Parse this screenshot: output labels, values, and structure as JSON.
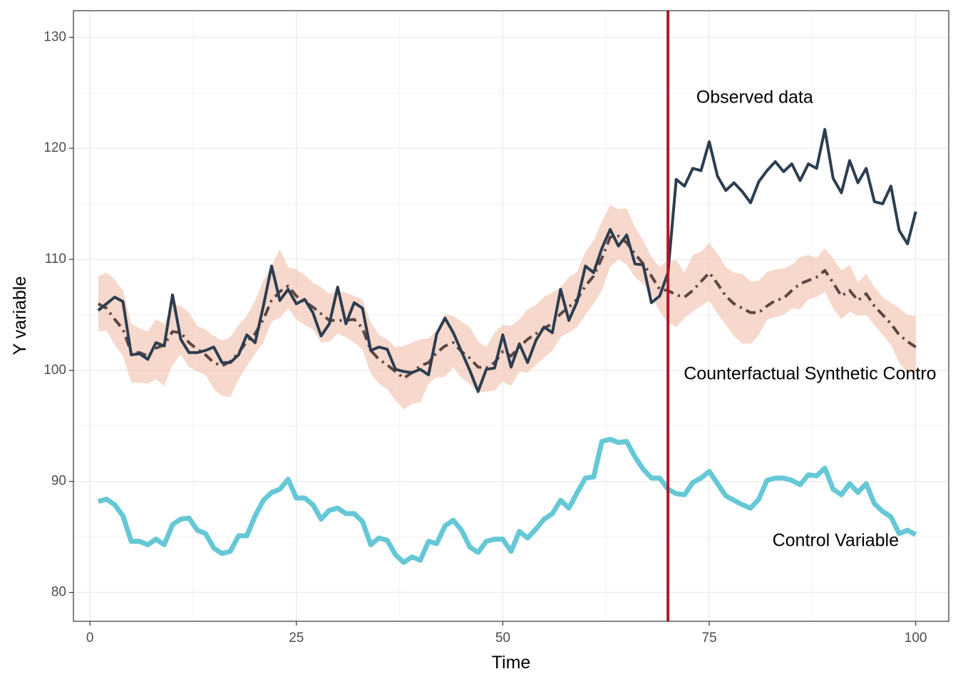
{
  "chart_data": {
    "type": "line",
    "xlabel": "Time",
    "ylabel": "Y variable",
    "xlim": [
      -2,
      104
    ],
    "ylim": [
      77.4,
      132.4
    ],
    "x_ticks": [
      0,
      25,
      50,
      75,
      100
    ],
    "y_ticks": [
      80,
      90,
      100,
      110,
      120,
      130
    ],
    "grid": true,
    "intervention": {
      "x": 70,
      "color": "#b2182b"
    },
    "annotations": [
      {
        "text": "Observed data",
        "x": 80.5,
        "y": 124.5
      },
      {
        "text": "Counterfactual Synthetic Contro",
        "x": 87.2,
        "y": 99.6
      },
      {
        "text": "Control Variable",
        "x": 90.3,
        "y": 84.6
      }
    ],
    "colors": {
      "observed": "#2c3e50",
      "counterfactual": "#5b4643",
      "band": "#f4c7b6",
      "control": "#66c8d6"
    },
    "series": [
      {
        "key": "observed",
        "x": [
          1,
          2,
          3,
          4,
          5,
          6,
          7,
          8,
          9,
          10,
          11,
          12,
          13,
          14,
          15,
          16,
          17,
          18,
          19,
          20,
          21,
          22,
          23,
          24,
          25,
          26,
          27,
          28,
          29,
          30,
          31,
          32,
          33,
          34,
          35,
          36,
          37,
          38,
          39,
          40,
          41,
          42,
          43,
          44,
          45,
          46,
          47,
          48,
          49,
          50,
          51,
          52,
          53,
          54,
          55,
          56,
          57,
          58,
          59,
          60,
          61,
          62,
          63,
          64,
          65,
          66,
          67,
          68,
          69,
          70,
          71,
          72,
          73,
          74,
          75,
          76,
          77,
          78,
          79,
          80,
          81,
          82,
          83,
          84,
          85,
          86,
          87,
          88,
          89,
          90,
          91,
          92,
          93,
          94,
          95,
          96,
          97,
          98,
          99,
          100
        ],
        "y": [
          105.4,
          106,
          106.6,
          106.2,
          101.4,
          101.5,
          101,
          102.5,
          102.2,
          106.8,
          102.8,
          101.6,
          101.6,
          101.8,
          102.1,
          100.7,
          100.7,
          101.4,
          103.2,
          102.5,
          105.8,
          109.4,
          106.3,
          107.3,
          106,
          106.4,
          105.2,
          103.1,
          104.2,
          107.5,
          104.2,
          106.1,
          105.6,
          101.8,
          102.1,
          101.9,
          100.1,
          99.9,
          99.8,
          100.1,
          99.6,
          103.3,
          104.7,
          103.4,
          101.7,
          100,
          98.1,
          100.1,
          100.2,
          103.2,
          100.3,
          102.4,
          100.7,
          102.7,
          103.9,
          103.4,
          107.3,
          104.5,
          106.2,
          109.4,
          108.8,
          111,
          112.7,
          111.2,
          112.2,
          109.6,
          109.5,
          106.1,
          106.7,
          108.8,
          117.2,
          116.6,
          118.2,
          118,
          120.6,
          117.5,
          116.2,
          116.9,
          116.1,
          115.1,
          117,
          118,
          118.8,
          117.9,
          118.6,
          117.1,
          118.6,
          118.2,
          121.7,
          117.3,
          116,
          118.9,
          116.9,
          118.2,
          115.2,
          115,
          116.6,
          112.6,
          111.4,
          114.3
        ]
      },
      {
        "key": "counterfactual",
        "x": [
          1,
          2,
          3,
          4,
          5,
          6,
          7,
          8,
          9,
          10,
          11,
          12,
          13,
          14,
          15,
          16,
          17,
          18,
          19,
          20,
          21,
          22,
          23,
          24,
          25,
          26,
          27,
          28,
          29,
          30,
          31,
          32,
          33,
          34,
          35,
          36,
          37,
          38,
          39,
          40,
          41,
          42,
          43,
          44,
          45,
          46,
          47,
          48,
          49,
          50,
          51,
          52,
          53,
          54,
          55,
          56,
          57,
          58,
          59,
          60,
          61,
          62,
          63,
          64,
          65,
          66,
          67,
          68,
          69,
          70,
          71,
          72,
          73,
          74,
          75,
          76,
          77,
          78,
          79,
          80,
          81,
          82,
          83,
          84,
          85,
          86,
          87,
          88,
          89,
          90,
          91,
          92,
          93,
          94,
          95,
          96,
          97,
          98,
          99,
          100
        ],
        "y": [
          106,
          105.6,
          104.6,
          103.7,
          101.6,
          101.6,
          101.3,
          102,
          102.3,
          103.5,
          103.4,
          102.5,
          101.9,
          101.4,
          100.7,
          100.4,
          100.8,
          101.6,
          102.6,
          103.3,
          104.6,
          106.3,
          107.1,
          107.6,
          106.7,
          106.2,
          105.7,
          105.1,
          104.5,
          104.5,
          104.5,
          104.6,
          103.8,
          101.8,
          101,
          100.5,
          99.9,
          99.3,
          99.8,
          100.4,
          100.7,
          101.6,
          102.2,
          102.5,
          101.7,
          101.1,
          100.3,
          100.2,
          100.7,
          101.7,
          101.3,
          102.1,
          102.8,
          103.3,
          103.8,
          104.2,
          105.1,
          105.7,
          106.4,
          107.6,
          108.5,
          110.1,
          112,
          112.1,
          111.5,
          110.5,
          109.6,
          108.5,
          107.3,
          107.2,
          106.8,
          106.6,
          107.2,
          108,
          108.8,
          107.8,
          106.7,
          106,
          105.6,
          105.2,
          105.2,
          105.8,
          106.3,
          106.5,
          107.2,
          107.8,
          108.1,
          108.4,
          109,
          107.9,
          106.7,
          107.2,
          106.3,
          106.9,
          105.8,
          105,
          104.2,
          103.2,
          102.6,
          102.1
        ]
      },
      {
        "key": "control",
        "x": [
          1,
          2,
          3,
          4,
          5,
          6,
          7,
          8,
          9,
          10,
          11,
          12,
          13,
          14,
          15,
          16,
          17,
          18,
          19,
          20,
          21,
          22,
          23,
          24,
          25,
          26,
          27,
          28,
          29,
          30,
          31,
          32,
          33,
          34,
          35,
          36,
          37,
          38,
          39,
          40,
          41,
          42,
          43,
          44,
          45,
          46,
          47,
          48,
          49,
          50,
          51,
          52,
          53,
          54,
          55,
          56,
          57,
          58,
          59,
          60,
          61,
          62,
          63,
          64,
          65,
          66,
          67,
          68,
          69,
          70,
          71,
          72,
          73,
          74,
          75,
          76,
          77,
          78,
          79,
          80,
          81,
          82,
          83,
          84,
          85,
          86,
          87,
          88,
          89,
          90,
          91,
          92,
          93,
          94,
          95,
          96,
          97,
          98,
          99,
          100
        ],
        "y": [
          88.2,
          88.4,
          87.9,
          86.9,
          84.6,
          84.6,
          84.3,
          84.8,
          84.3,
          86.1,
          86.6,
          86.7,
          85.6,
          85.3,
          84,
          83.5,
          83.7,
          85.1,
          85.1,
          86.9,
          88.3,
          89,
          89.3,
          90.2,
          88.5,
          88.5,
          87.9,
          86.6,
          87.4,
          87.6,
          87.1,
          87.1,
          86.4,
          84.3,
          84.9,
          84.7,
          83.4,
          82.7,
          83.2,
          82.9,
          84.6,
          84.4,
          86,
          86.5,
          85.6,
          84.1,
          83.6,
          84.6,
          84.8,
          84.8,
          83.7,
          85.5,
          84.9,
          85.7,
          86.6,
          87.1,
          88.3,
          87.6,
          89,
          90.3,
          90.4,
          93.6,
          93.8,
          93.5,
          93.6,
          92.2,
          91.1,
          90.3,
          90.3,
          89.3,
          88.9,
          88.8,
          89.9,
          90.3,
          90.9,
          89.8,
          88.7,
          88.3,
          87.9,
          87.6,
          88.4,
          90.1,
          90.3,
          90.3,
          90.1,
          89.7,
          90.6,
          90.5,
          91.2,
          89.3,
          88.8,
          89.8,
          89,
          89.8,
          88,
          87.3,
          86.8,
          85.3,
          85.6,
          85.2
        ]
      }
    ],
    "band": {
      "x": [
        1,
        2,
        3,
        4,
        5,
        6,
        7,
        8,
        9,
        10,
        11,
        12,
        13,
        14,
        15,
        16,
        17,
        18,
        19,
        20,
        21,
        22,
        23,
        24,
        25,
        26,
        27,
        28,
        29,
        30,
        31,
        32,
        33,
        34,
        35,
        36,
        37,
        38,
        39,
        40,
        41,
        42,
        43,
        44,
        45,
        46,
        47,
        48,
        49,
        50,
        51,
        52,
        53,
        54,
        55,
        56,
        57,
        58,
        59,
        60,
        61,
        62,
        63,
        64,
        65,
        66,
        67,
        68,
        69,
        70,
        71,
        72,
        73,
        74,
        75,
        76,
        77,
        78,
        79,
        80,
        81,
        82,
        83,
        84,
        85,
        86,
        87,
        88,
        89,
        90,
        91,
        92,
        93,
        94,
        95,
        96,
        97,
        98,
        99,
        100
      ],
      "lower": [
        103.5,
        103.6,
        102.3,
        101.3,
        98.9,
        98.9,
        98.8,
        99.2,
        98.6,
        100.5,
        101.4,
        100.3,
        99.9,
        99.6,
        98.3,
        97.7,
        97.6,
        99.2,
        100.4,
        101.5,
        102.5,
        104.4,
        104.7,
        105.6,
        104.6,
        104.1,
        103.7,
        102.5,
        102.6,
        103.3,
        103,
        102.5,
        101.9,
        99.7,
        98.8,
        98.3,
        97.3,
        96.5,
        97,
        97.1,
        98.8,
        99.4,
        99.4,
        100.3,
        99.3,
        98.8,
        98,
        98.1,
        98.2,
        99,
        98.6,
        99.9,
        99.8,
        100.5,
        101.1,
        101.8,
        103,
        103.4,
        103.9,
        105,
        106,
        107.2,
        109.3,
        110,
        109.5,
        108.4,
        107.8,
        106.8,
        105.3,
        104.3,
        103.9,
        104.7,
        105.3,
        105.8,
        106.3,
        105.1,
        104.1,
        103.1,
        102.4,
        102.4,
        103.2,
        104.6,
        104.8,
        105,
        105.6,
        105.5,
        106.4,
        106.6,
        107.1,
        105.6,
        104.6,
        105.3,
        104.9,
        105,
        104.1,
        103.2,
        102.3,
        100.7,
        99.8,
        99.8
      ],
      "upper": [
        108.5,
        108.8,
        108.2,
        107.2,
        104.2,
        103.8,
        103.5,
        104.6,
        104.2,
        106,
        105.8,
        105.2,
        104,
        103.7,
        103.1,
        102.7,
        103,
        104.1,
        104.9,
        106.3,
        108.1,
        109.4,
        110.9,
        109.3,
        109.1,
        108.6,
        107.9,
        107.5,
        106.9,
        107.2,
        107,
        106.7,
        106.4,
        104.3,
        103.2,
        102.8,
        102.1,
        102.2,
        102.5,
        102.8,
        102.9,
        103.6,
        105.1,
        104.9,
        104.4,
        103.9,
        102.6,
        102.1,
        103.4,
        104.1,
        104,
        104.6,
        105.5,
        105.9,
        106.6,
        107,
        107.5,
        108.4,
        108.9,
        110.7,
        111.7,
        113.4,
        114.9,
        114.5,
        114.6,
        112.9,
        111.7,
        110.2,
        109.3,
        109.9,
        109.9,
        108.8,
        110.4,
        110.7,
        111.5,
        110.5,
        109.3,
        108.8,
        108.7,
        108,
        108.1,
        108.9,
        109.1,
        109.2,
        109.5,
        110.2,
        110.4,
        110.1,
        111,
        110.1,
        109,
        109.5,
        107.9,
        108.7,
        107.5,
        106.6,
        106.1,
        105.6,
        105,
        104.9
      ]
    }
  }
}
